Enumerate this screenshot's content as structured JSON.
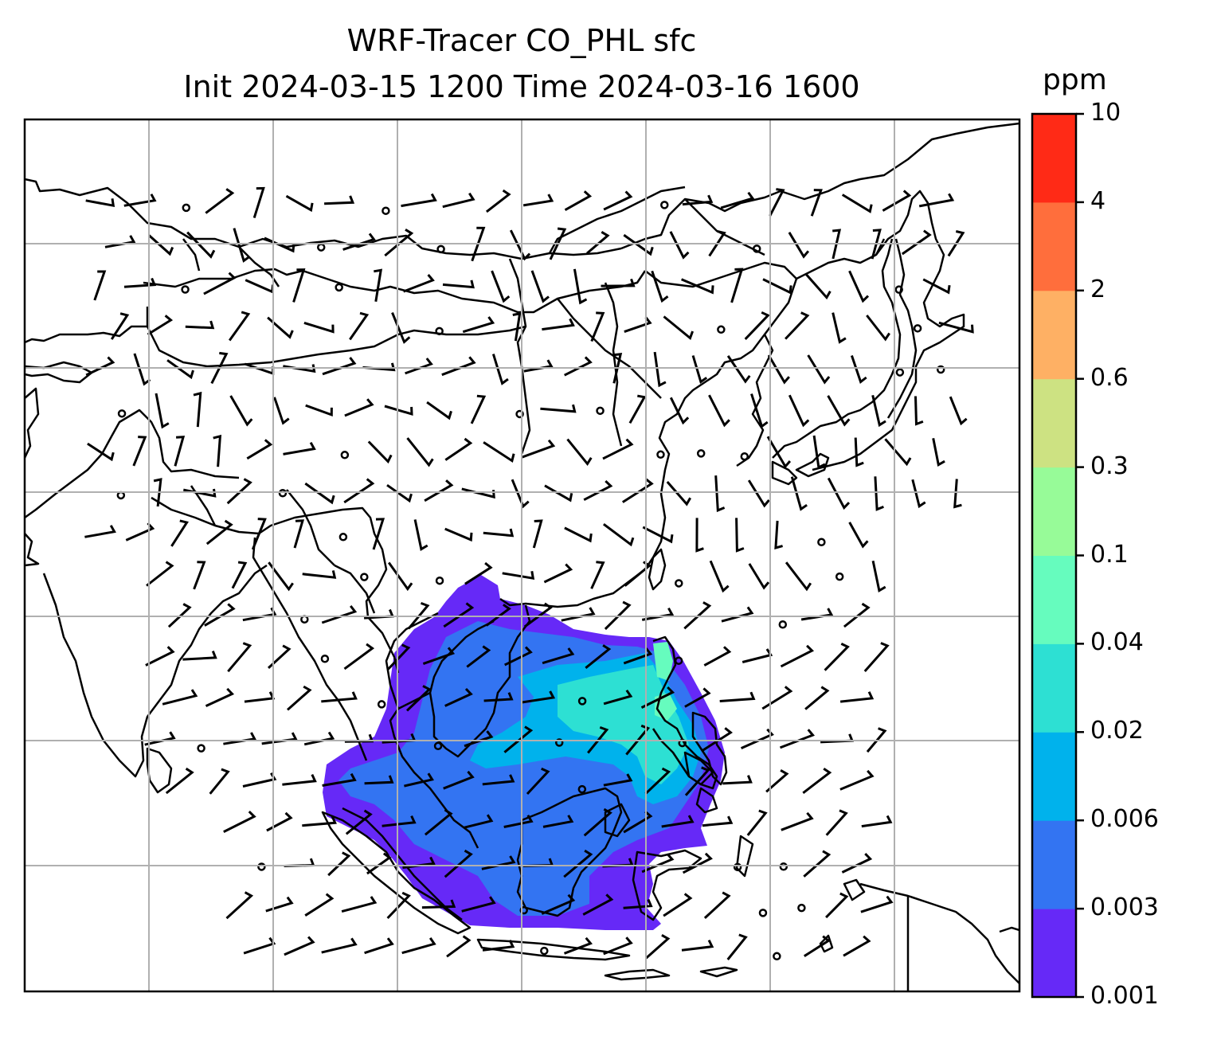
{
  "title": {
    "line1": "WRF-Tracer CO_PHL sfc",
    "line2": "Init 2024-03-15 1200 Time 2024-03-16 1600"
  },
  "colorbar": {
    "unit": "ppm",
    "levels": [
      "0.001",
      "0.003",
      "0.006",
      "0.02",
      "0.04",
      "0.1",
      "0.3",
      "0.6",
      "2",
      "4",
      "10"
    ],
    "colors": [
      "#6629f7",
      "#3374f2",
      "#00b2ec",
      "#2de0d3",
      "#66fcbe",
      "#97fb98",
      "#cde282",
      "#feb064",
      "#ff6e3c",
      "#ff2a16"
    ]
  },
  "map": {
    "gridlines": true,
    "field": "CO_PHL tracer surface concentration",
    "plume_origin": "Philippines",
    "overlay": "wind barbs and calm circles"
  }
}
